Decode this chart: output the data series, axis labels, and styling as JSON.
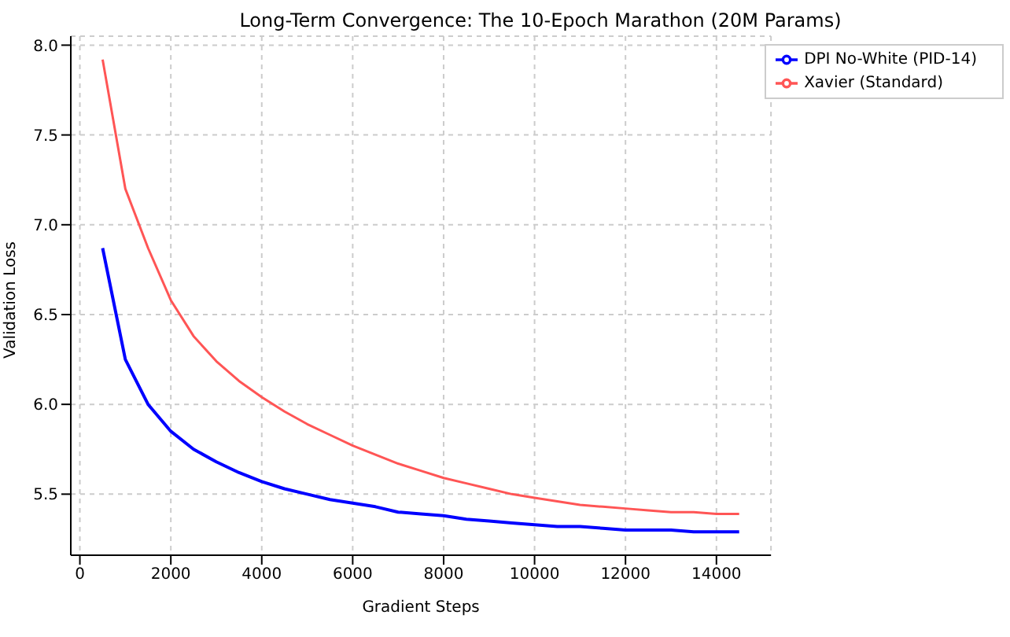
{
  "chart_data": {
    "type": "line",
    "title": "Long-Term Convergence: The 10-Epoch Marathon (20M Params)",
    "xlabel": "Gradient Steps",
    "ylabel": "Validation Loss",
    "x": [
      500,
      1000,
      1500,
      2000,
      2500,
      3000,
      3500,
      4000,
      4500,
      5000,
      5500,
      6000,
      6500,
      7000,
      7500,
      8000,
      8500,
      9000,
      9500,
      10000,
      10500,
      11000,
      11500,
      12000,
      12500,
      13000,
      13500,
      14000,
      14500
    ],
    "series": [
      {
        "name": "Xavier (Standard)",
        "color": "#ff5555",
        "values": [
          7.92,
          7.2,
          6.87,
          6.58,
          6.38,
          6.24,
          6.13,
          6.04,
          5.96,
          5.89,
          5.83,
          5.77,
          5.72,
          5.67,
          5.63,
          5.59,
          5.56,
          5.53,
          5.5,
          5.48,
          5.46,
          5.44,
          5.43,
          5.42,
          5.41,
          5.4,
          5.4,
          5.39,
          5.39
        ]
      },
      {
        "name": "DPI No-White (PID-14)",
        "color": "#0000ff",
        "values": [
          6.87,
          6.25,
          6.0,
          5.85,
          5.75,
          5.68,
          5.62,
          5.57,
          5.53,
          5.5,
          5.47,
          5.45,
          5.43,
          5.4,
          5.39,
          5.38,
          5.36,
          5.35,
          5.34,
          5.33,
          5.32,
          5.32,
          5.31,
          5.3,
          5.3,
          5.3,
          5.29,
          5.29,
          5.29
        ]
      }
    ],
    "xlim": [
      -200,
      15200
    ],
    "xticks": [
      0,
      2000,
      4000,
      6000,
      8000,
      10000,
      12000,
      14000
    ],
    "ylim": [
      5.16,
      8.05
    ],
    "yticks": [
      {
        "value": 5.5,
        "label": "5.5"
      },
      {
        "value": 6,
        "label": "6.0"
      },
      {
        "value": 6.5,
        "label": "6.5"
      },
      {
        "value": 7,
        "label": "7.0"
      },
      {
        "value": 7.5,
        "label": "7.5"
      },
      {
        "value": 8,
        "label": "8.0"
      }
    ],
    "grid": true,
    "legend": "top right",
    "line_style": "solid",
    "marker": "none"
  }
}
